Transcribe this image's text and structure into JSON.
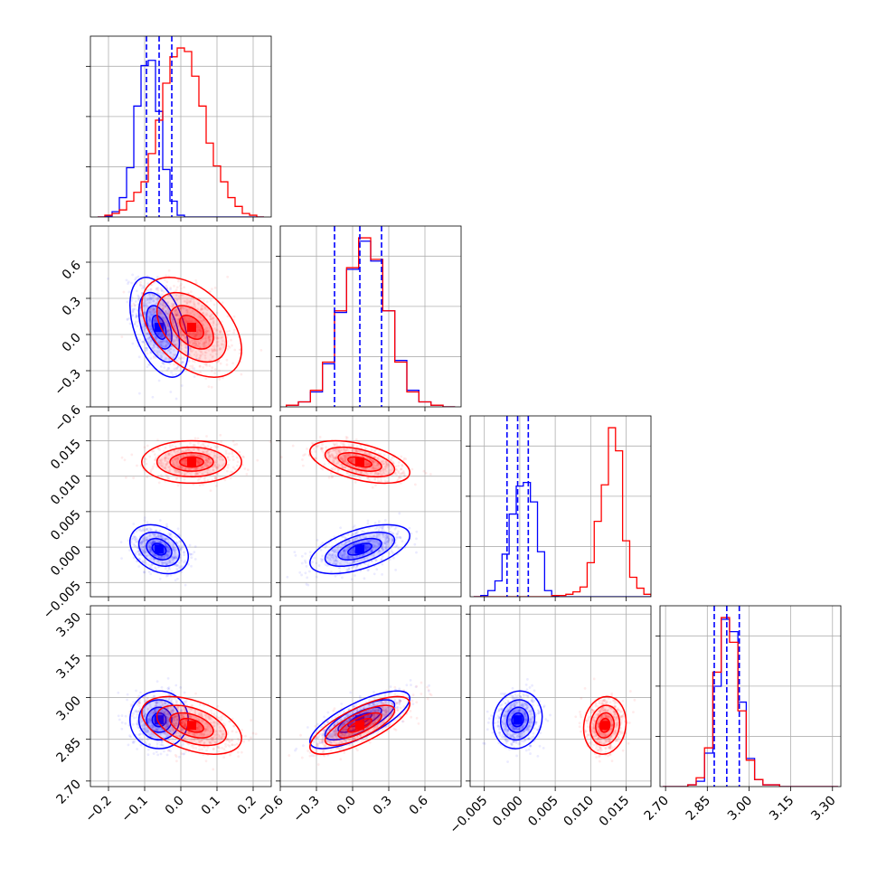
{
  "colors": {
    "blue": "#0000ff",
    "red": "#ff0000",
    "grid": "#b0b0b0"
  },
  "chart_data": {
    "type": "corner",
    "grid": true,
    "params": [
      {
        "range": [
          -0.25,
          0.25
        ],
        "ticks": [
          -0.2,
          -0.1,
          0.0,
          0.1,
          0.2
        ],
        "tick_labels": [
          "−0.2",
          "−0.1",
          "0.0",
          "0.1",
          "0.2"
        ]
      },
      {
        "range": [
          -0.6,
          0.9
        ],
        "ticks": [
          -0.6,
          -0.3,
          0.0,
          0.3,
          0.6
        ],
        "tick_labels": [
          "−0.6",
          "−0.3",
          "0.0",
          "0.3",
          "0.6"
        ]
      },
      {
        "range": [
          -0.007,
          0.0185
        ],
        "ticks": [
          -0.005,
          0.0,
          0.005,
          0.01,
          0.015
        ],
        "tick_labels": [
          "−0.005",
          "0.000",
          "0.005",
          "0.010",
          "0.015"
        ]
      },
      {
        "range": [
          2.68,
          3.33
        ],
        "ticks": [
          2.7,
          2.85,
          3.0,
          3.15,
          3.3
        ],
        "tick_labels": [
          "2.70",
          "2.85",
          "3.00",
          "3.15",
          "3.30"
        ]
      }
    ],
    "quantiles": [
      [
        -0.095,
        -0.06,
        -0.025
      ],
      [
        -0.15,
        0.06,
        0.24
      ],
      [
        -0.0018,
        -0.0003,
        0.0012
      ],
      [
        2.875,
        2.92,
        2.965
      ]
    ],
    "series": [
      {
        "color": "blue",
        "means": [
          -0.06,
          0.06,
          -0.0003,
          2.92
        ],
        "sds": [
          0.035,
          0.18,
          0.0015,
          0.045
        ]
      },
      {
        "color": "red",
        "means": [
          0.03,
          0.06,
          0.012,
          2.9
        ],
        "sds": [
          0.06,
          0.18,
          0.0013,
          0.045
        ]
      }
    ],
    "hist_bins": [
      [
        -0.23,
        -0.21,
        -0.19,
        -0.17,
        -0.15,
        -0.13,
        -0.11,
        -0.09,
        -0.07,
        -0.05,
        -0.03,
        -0.01,
        0.01,
        0.03,
        0.05,
        0.07,
        0.09,
        0.11,
        0.13,
        0.15,
        0.17,
        0.19,
        0.21,
        0.23
      ],
      [
        -0.55,
        -0.45,
        -0.35,
        -0.25,
        -0.15,
        -0.05,
        0.05,
        0.15,
        0.25,
        0.35,
        0.45,
        0.55,
        0.65,
        0.75,
        0.85
      ],
      [
        -0.0065,
        -0.0055,
        -0.0045,
        -0.0035,
        -0.0025,
        -0.0015,
        -0.0005,
        0.0005,
        0.0015,
        0.0025,
        0.0035,
        0.0045,
        0.0055,
        0.0065,
        0.0075,
        0.0085,
        0.0095,
        0.0105,
        0.0115,
        0.0125,
        0.0135,
        0.0145,
        0.0155,
        0.0165,
        0.0175,
        0.0185
      ],
      [
        2.69,
        2.72,
        2.75,
        2.78,
        2.81,
        2.84,
        2.87,
        2.9,
        2.93,
        2.96,
        2.99,
        3.02,
        3.05,
        3.08,
        3.11,
        3.14,
        3.17,
        3.2,
        3.23,
        3.26,
        3.29,
        3.32
      ]
    ],
    "hist_counts": [
      {
        "blue": [
          0,
          0.5,
          3,
          11,
          28,
          63,
          86,
          89,
          60,
          27,
          9,
          1,
          0,
          0,
          0,
          0,
          0,
          0,
          0,
          0,
          0,
          0,
          0,
          0
        ],
        "red": [
          0,
          1,
          2,
          4,
          9,
          14,
          20,
          36,
          55,
          76,
          91,
          96,
          94,
          80,
          63,
          42,
          29,
          20,
          11,
          6,
          2,
          1,
          0,
          0
        ]
      },
      {
        "blue": [
          1,
          3,
          9,
          26,
          57,
          83,
          100,
          88,
          58,
          28,
          10,
          3,
          1,
          0,
          0
        ],
        "red": [
          1,
          3,
          10,
          27,
          58,
          84,
          102,
          89,
          58,
          27,
          9,
          3,
          1,
          0,
          0
        ]
      },
      {
        "blue": [
          0,
          1,
          5,
          13,
          35,
          68,
          91,
          94,
          78,
          37,
          5,
          0.5,
          0,
          0,
          0,
          0,
          0,
          0,
          0,
          0,
          0,
          0,
          0,
          0,
          0
        ],
        "red": [
          0,
          0,
          0,
          0,
          0,
          0,
          0,
          0,
          0,
          0,
          0,
          1,
          1,
          2,
          4,
          8,
          28,
          62,
          92,
          139,
          120,
          46,
          16,
          7,
          2,
          0
        ]
      },
      {
        "blue": [
          0,
          0,
          0,
          1,
          3,
          19,
          57,
          95,
          88,
          48,
          16,
          4,
          1,
          1,
          0,
          0,
          0,
          0,
          0,
          0,
          0
        ],
        "red": [
          0,
          0,
          0,
          1,
          5,
          22,
          65,
          96,
          82,
          43,
          15,
          4,
          1,
          1,
          0,
          0,
          0,
          0,
          0,
          0,
          0
        ]
      }
    ],
    "correlations": {
      "blue": {
        "0-1": -0.45,
        "0-2": -0.3,
        "1-2": 0.55,
        "0-3": 0.0,
        "1-3": 0.75,
        "2-3": 0.1
      },
      "red": {
        "0-1": -0.45,
        "0-2": 0.0,
        "1-2": -0.5,
        "0-3": -0.45,
        "1-3": 0.75,
        "2-3": 0.1
      }
    }
  }
}
